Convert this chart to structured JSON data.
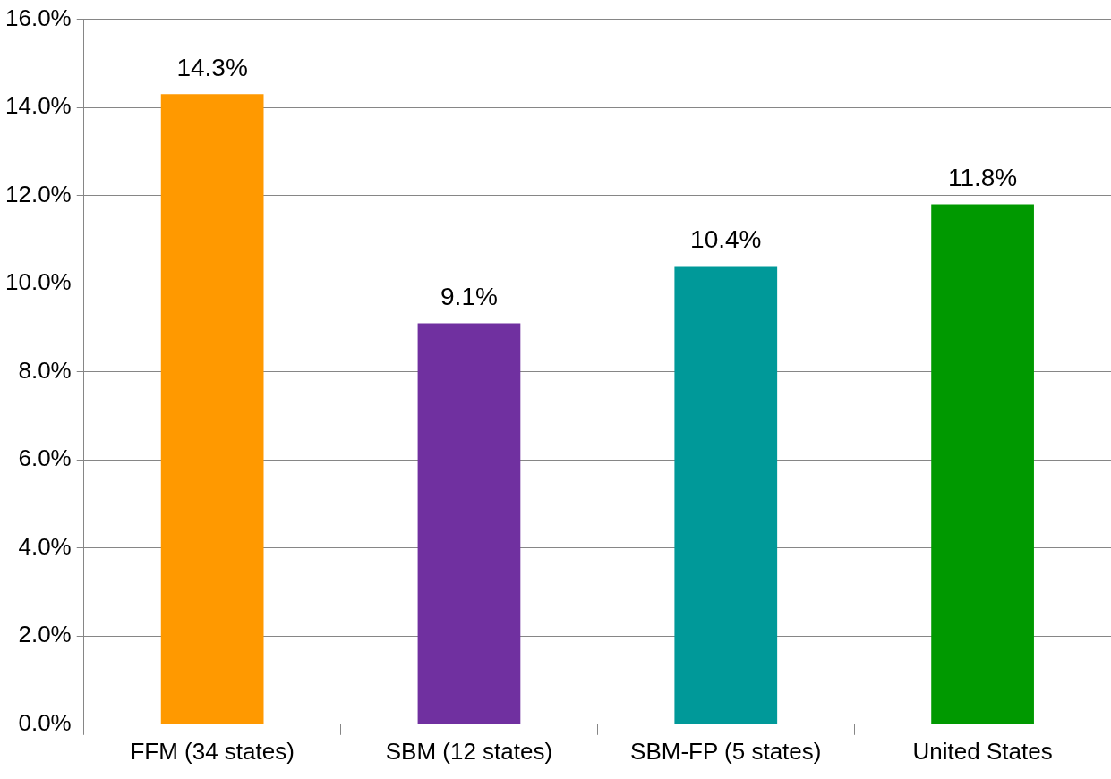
{
  "chart_data": {
    "type": "bar",
    "categories": [
      "FFM (34 states)",
      "SBM (12 states)",
      "SBM-FP (5 states)",
      "United States"
    ],
    "values": [
      14.3,
      9.1,
      10.4,
      11.8
    ],
    "colors": [
      "#ff9900",
      "#7030a0",
      "#009999",
      "#009900"
    ],
    "value_labels": [
      "14.3%",
      "9.1%",
      "10.4%",
      "11.8%"
    ],
    "ylim": [
      0,
      16
    ],
    "yticks": [
      {
        "value": 0,
        "label": "0.0%"
      },
      {
        "value": 2,
        "label": "2.0%"
      },
      {
        "value": 4,
        "label": "4.0%"
      },
      {
        "value": 6,
        "label": "6.0%"
      },
      {
        "value": 8,
        "label": "8.0%"
      },
      {
        "value": 10,
        "label": "10.0%"
      },
      {
        "value": 12,
        "label": "12.0%"
      },
      {
        "value": 14,
        "label": "14.0%"
      },
      {
        "value": 16,
        "label": "16.0%"
      }
    ],
    "grid": "y"
  }
}
